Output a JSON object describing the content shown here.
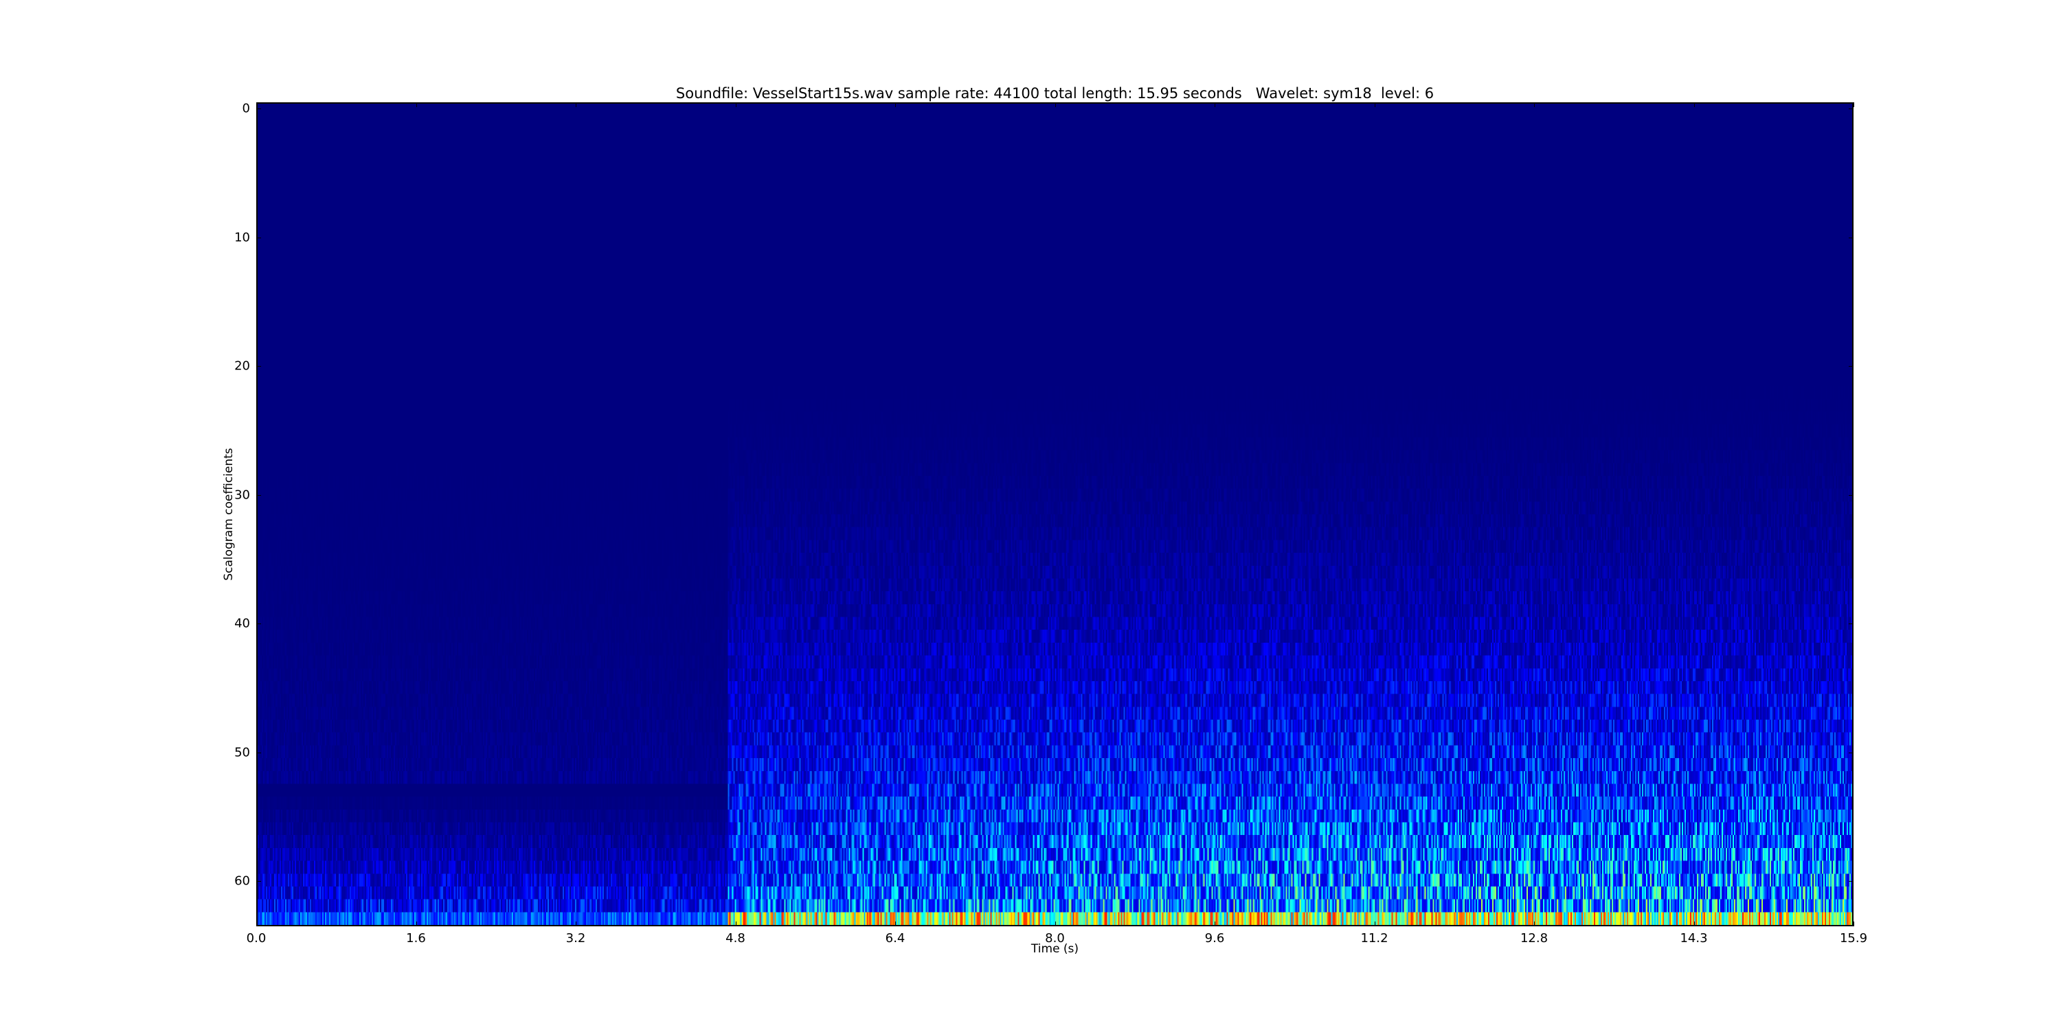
{
  "chart_data": {
    "type": "heatmap",
    "title": "Soundfile: VesselStart15s.wav sample rate: 44100 total length: 15.95 seconds   Wavelet: sym18  level: 6",
    "xlabel": "Time (s)",
    "ylabel": "Scalogram coefficients",
    "xlim": [
      0.0,
      15.95
    ],
    "ylim": [
      63.5,
      -0.5
    ],
    "x_tick_labels": [
      "0.0",
      "1.6",
      "3.2",
      "4.8",
      "6.4",
      "8.0",
      "9.6",
      "11.2",
      "12.8",
      "14.3",
      "15.9"
    ],
    "y_tick_labels": [
      "0",
      "10",
      "20",
      "30",
      "40",
      "50",
      "60"
    ],
    "y_ticks": [
      0,
      10,
      20,
      30,
      40,
      50,
      60
    ],
    "rows": 64,
    "colormap": "jet",
    "onset_time_s": 4.7,
    "grid": false
  }
}
